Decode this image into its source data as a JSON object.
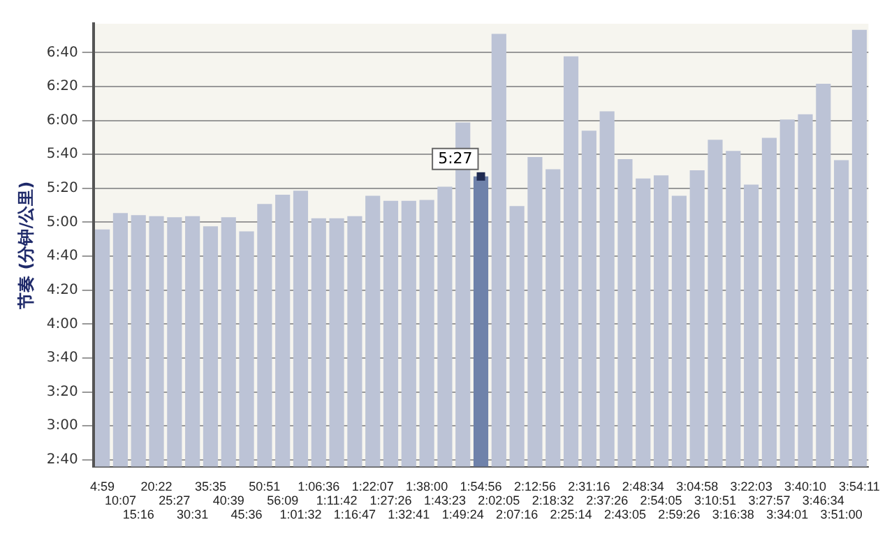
{
  "chart_data": {
    "type": "bar",
    "ylabel": "节奏 (分钟/公里)",
    "categories": [
      "4:59",
      "10:07",
      "15:16",
      "20:22",
      "25:27",
      "30:31",
      "35:35",
      "40:39",
      "45:36",
      "50:51",
      "56:09",
      "1:01:32",
      "1:06:36",
      "1:11:42",
      "1:16:47",
      "1:22:07",
      "1:27:26",
      "1:32:41",
      "1:38:00",
      "1:43:23",
      "1:49:24",
      "1:54:56",
      "2:02:05",
      "2:07:16",
      "2:12:56",
      "2:18:32",
      "2:25:14",
      "2:31:16",
      "2:37:26",
      "2:43:05",
      "2:48:34",
      "2:54:05",
      "2:59:26",
      "3:04:58",
      "3:10:51",
      "3:16:38",
      "3:22:03",
      "3:27:57",
      "3:34:01",
      "3:40:10",
      "3:46:34",
      "3:51:00",
      "3:54:11"
    ],
    "values": [
      4.93,
      5.09,
      5.07,
      5.06,
      5.05,
      5.06,
      4.96,
      5.05,
      4.91,
      5.18,
      5.27,
      5.31,
      5.04,
      5.04,
      5.06,
      5.26,
      5.21,
      5.21,
      5.22,
      5.35,
      5.98,
      5.45,
      6.85,
      5.16,
      5.64,
      5.52,
      6.63,
      5.9,
      6.09,
      5.62,
      5.43,
      5.46,
      5.26,
      5.51,
      5.81,
      5.7,
      5.37,
      5.83,
      6.01,
      6.06,
      6.36,
      5.61,
      6.89
    ],
    "colors": [
      "#bcc3d6",
      "#bcc3d6",
      "#bcc3d6",
      "#bcc3d6",
      "#bcc3d6",
      "#bcc3d6",
      "#bcc3d6",
      "#bcc3d6",
      "#bcc3d6",
      "#bcc3d6",
      "#bcc3d6",
      "#bcc3d6",
      "#bcc3d6",
      "#bcc3d6",
      "#bcc3d6",
      "#bcc3d6",
      "#bcc3d6",
      "#bcc3d6",
      "#bcc3d6",
      "#bcc3d6",
      "#bcc3d6",
      "#6f82aa",
      "#bcc3d6",
      "#bcc3d6",
      "#bcc3d6",
      "#bcc3d6",
      "#bcc3d6",
      "#bcc3d6",
      "#bcc3d6",
      "#bcc3d6",
      "#bcc3d6",
      "#bcc3d6",
      "#bcc3d6",
      "#bcc3d6",
      "#bcc3d6",
      "#bcc3d6",
      "#bcc3d6",
      "#bcc3d6",
      "#bcc3d6",
      "#bcc3d6",
      "#bcc3d6",
      "#bcc3d6",
      "#bcc3d6"
    ],
    "ylim": [
      2.6,
      6.95
    ],
    "yticks": [
      {
        "value": 2.6667,
        "label": "2:40"
      },
      {
        "value": 3,
        "label": "3:00"
      },
      {
        "value": 3.3333,
        "label": "3:20"
      },
      {
        "value": 3.6667,
        "label": "3:40"
      },
      {
        "value": 4,
        "label": "4:00"
      },
      {
        "value": 4.3333,
        "label": "4:20"
      },
      {
        "value": 4.6667,
        "label": "4:40"
      },
      {
        "value": 5,
        "label": "5:00"
      },
      {
        "value": 5.3333,
        "label": "5:20"
      },
      {
        "value": 5.6667,
        "label": "5:40"
      },
      {
        "value": 6,
        "label": "6:00"
      },
      {
        "value": 6.3333,
        "label": "6:20"
      },
      {
        "value": 6.6667,
        "label": "6:40"
      }
    ],
    "annotations": [
      {
        "text": "5:27",
        "x": "1:54:56",
        "y": 5.45
      }
    ],
    "grid": "y",
    "legend": false
  }
}
